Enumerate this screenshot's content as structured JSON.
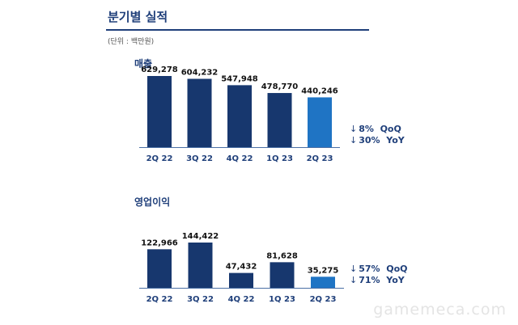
{
  "header": {
    "title": "분기별 실적",
    "unit": "(단위 : 백만원)"
  },
  "colors": {
    "bar_default": "#17376e",
    "bar_highlight": "#1f74c4",
    "text_primary": "#1f3f7a",
    "axis": "#4a6fa5",
    "value_text": "#111111"
  },
  "chart_data": [
    {
      "type": "bar",
      "title": "매출",
      "categories": [
        "2Q 22",
        "3Q 22",
        "4Q 22",
        "1Q 23",
        "2Q 23"
      ],
      "values": [
        629278,
        604232,
        547948,
        478770,
        440246
      ],
      "value_labels": [
        "629,278",
        "604,232",
        "547,948",
        "478,770",
        "440,246"
      ],
      "highlight_index": 4,
      "changes": [
        {
          "arrow": "↓",
          "value": "8%",
          "label": "QoQ"
        },
        {
          "arrow": "↓",
          "value": "30%",
          "label": "YoY"
        }
      ],
      "xlabel": "",
      "ylabel": "",
      "ylim": [
        0,
        629278
      ]
    },
    {
      "type": "bar",
      "title": "영업이익",
      "categories": [
        "2Q 22",
        "3Q 22",
        "4Q 22",
        "1Q 23",
        "2Q 23"
      ],
      "values": [
        122966,
        144422,
        47432,
        81628,
        35275
      ],
      "value_labels": [
        "122,966",
        "144,422",
        "47,432",
        "81,628",
        "35,275"
      ],
      "highlight_index": 4,
      "changes": [
        {
          "arrow": "↓",
          "value": "57%",
          "label": "QoQ"
        },
        {
          "arrow": "↓",
          "value": "71%",
          "label": "YoY"
        }
      ],
      "xlabel": "",
      "ylabel": "",
      "ylim": [
        0,
        144422
      ]
    }
  ],
  "watermark": "gamemeca.com"
}
